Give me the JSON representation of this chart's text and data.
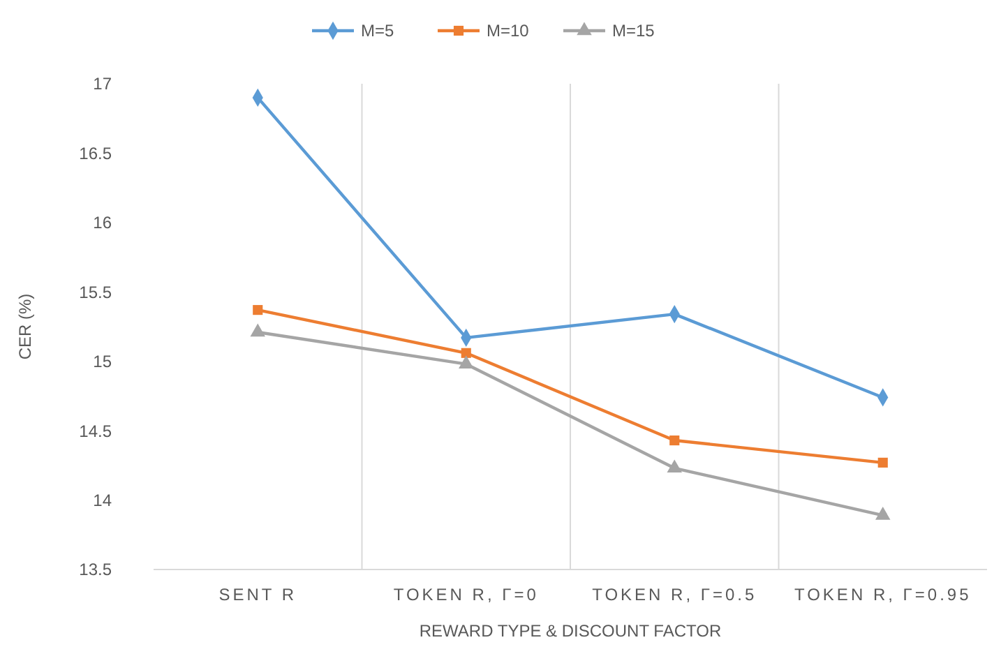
{
  "chart_data": {
    "type": "line",
    "xlabel": "REWARD TYPE & DISCOUNT FACTOR",
    "ylabel": "CER (%)",
    "categories": [
      "SENT R",
      "TOKEN R, Γ=0",
      "TOKEN R, Γ=0.5",
      "TOKEN R, Γ=0.95"
    ],
    "series": [
      {
        "name": "M=5",
        "color": "#5b9bd5",
        "marker": "diamond",
        "values": [
          16.9,
          15.17,
          15.34,
          14.74
        ]
      },
      {
        "name": "M=10",
        "color": "#ed7d31",
        "marker": "square",
        "values": [
          15.37,
          15.06,
          14.43,
          14.27
        ]
      },
      {
        "name": "M=15",
        "color": "#a5a5a5",
        "marker": "triangle",
        "values": [
          15.21,
          14.98,
          14.23,
          13.89
        ]
      }
    ],
    "ylim": [
      13.5,
      17
    ],
    "yticks": [
      13.5,
      14,
      14.5,
      15,
      15.5,
      16,
      16.5,
      17
    ],
    "grid": "x",
    "legend": "top"
  }
}
